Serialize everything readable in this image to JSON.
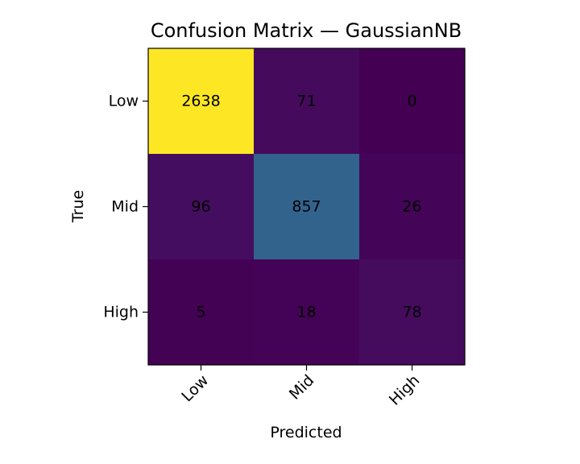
{
  "chart_data": {
    "type": "heatmap",
    "title": "Confusion Matrix — GaussianNB",
    "xlabel": "Predicted",
    "ylabel": "True",
    "x_categories": [
      "Low",
      "Mid",
      "High"
    ],
    "y_categories": [
      "Low",
      "Mid",
      "High"
    ],
    "values": [
      [
        2638,
        71,
        0
      ],
      [
        96,
        857,
        26
      ],
      [
        5,
        18,
        78
      ]
    ],
    "colormap": "viridis",
    "grid": false,
    "legend": "none"
  }
}
